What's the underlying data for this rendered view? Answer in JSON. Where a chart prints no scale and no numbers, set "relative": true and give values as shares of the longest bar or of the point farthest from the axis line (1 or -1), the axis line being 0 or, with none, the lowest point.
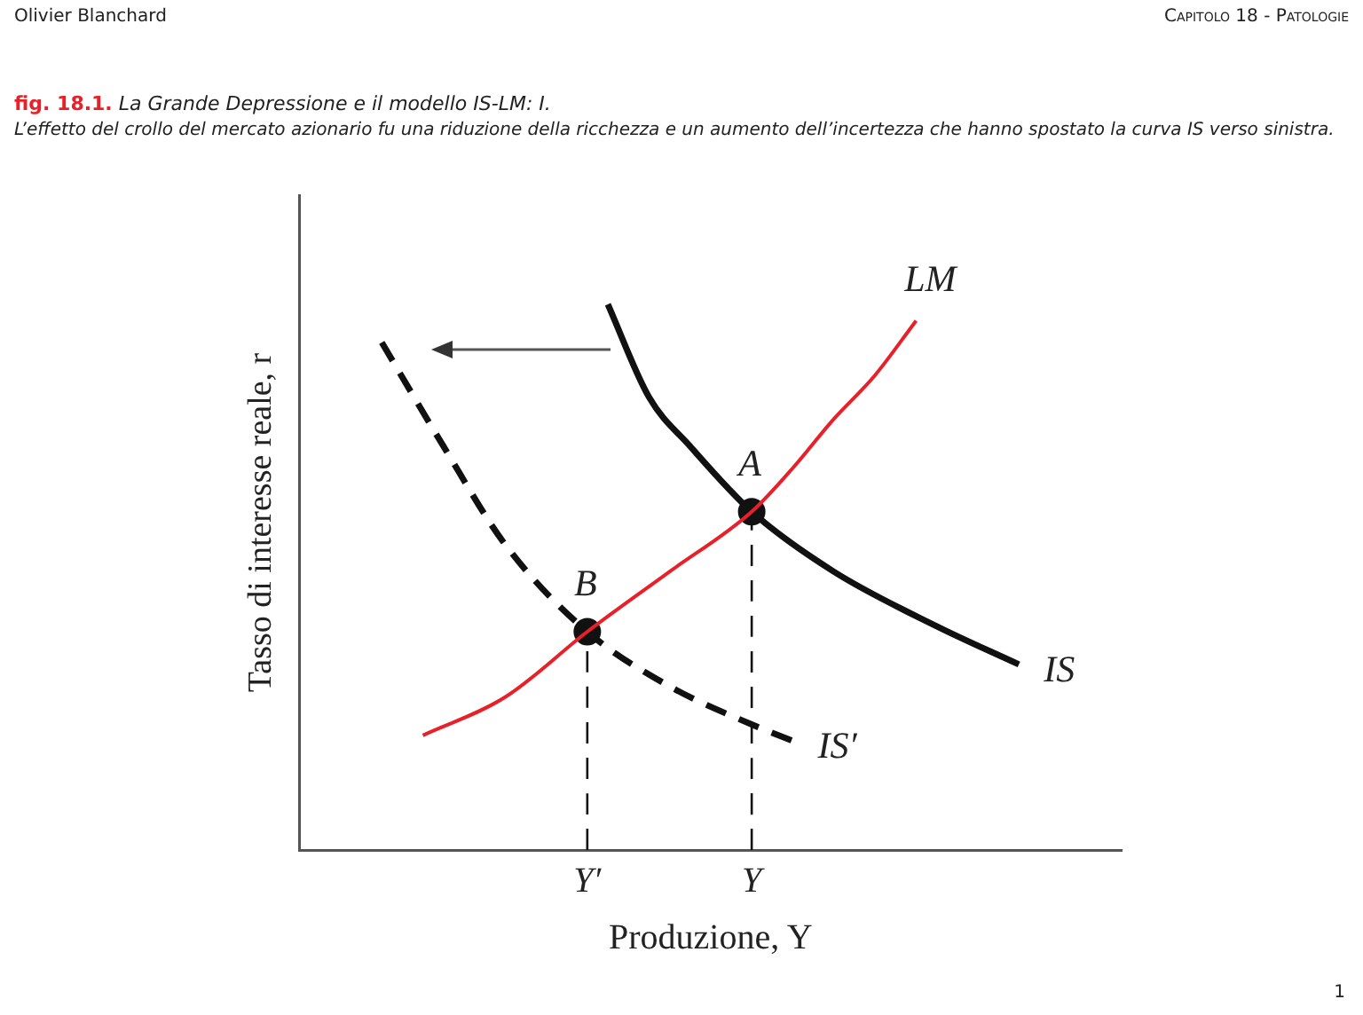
{
  "chart_data": {
    "type": "line",
    "relative": true,
    "title": "fig. 18.1. La Grande Depressione e il modello IS-LM: I.",
    "subtitle": "L’effetto del crollo del mercato azionario fu una riduzione della ricchezza e un aumento dell’incertezza che hanno spostato la curva IS verso sinistra.",
    "xlabel": "Produzione, Y",
    "ylabel": "Tasso di interesse reale, r",
    "categories": [
      null,
      null,
      null,
      null,
      null,
      null,
      null,
      null,
      null,
      null,
      null,
      null,
      null,
      null,
      "Y′",
      null,
      null,
      null,
      null,
      null,
      null,
      null,
      "Y",
      null,
      null,
      null,
      null,
      null,
      null,
      null,
      null,
      null,
      null,
      null,
      null,
      null,
      null,
      null,
      null,
      null,
      null
    ],
    "tick_labels": "x",
    "marker": "none",
    "series": [
      {
        "name": "LM",
        "color": "#e8202a",
        "line_style": "solid",
        "values": [
          null,
          null,
          null,
          null,
          null,
          null,
          0.21,
          null,
          null,
          null,
          0.28,
          null,
          null,
          null,
          0.4,
          null,
          null,
          null,
          0.51,
          null,
          null,
          null,
          0.62,
          null,
          0.7,
          null,
          0.79,
          null,
          0.87,
          null,
          0.97,
          null,
          null,
          null,
          null,
          null,
          null,
          null,
          null,
          null,
          null
        ]
      },
      {
        "name": "IS",
        "color": "#111111",
        "line_style": "solid",
        "values": [
          null,
          null,
          null,
          null,
          null,
          null,
          null,
          null,
          null,
          null,
          null,
          null,
          null,
          null,
          null,
          1.0,
          null,
          0.83,
          null,
          0.74,
          null,
          null,
          0.62,
          null,
          null,
          null,
          0.51,
          null,
          null,
          null,
          null,
          0.41,
          null,
          null,
          null,
          0.34,
          null,
          null,
          null,
          null,
          null
        ]
      },
      {
        "name": "IS′",
        "color": "#111111",
        "line_style": "dashed",
        "values": [
          null,
          null,
          null,
          null,
          0.93,
          null,
          null,
          0.74,
          null,
          null,
          0.56,
          null,
          null,
          null,
          0.4,
          null,
          null,
          null,
          0.3,
          null,
          null,
          null,
          0.23,
          null,
          0.2,
          null,
          null,
          null,
          null,
          null,
          null,
          null,
          null,
          null,
          null,
          null,
          null,
          null,
          null,
          null,
          null
        ]
      },
      {
        "color": "#111111",
        "line_style": "dashed",
        "x": [
          "Y′",
          "Y′"
        ],
        "values": [
          0,
          0.4
        ]
      },
      {
        "color": "#111111",
        "line_style": "dashed",
        "x": [
          "Y",
          "Y"
        ],
        "values": [
          0,
          0.62
        ]
      },
      {
        "type": "scatter",
        "marker": "circle",
        "color": "#111111",
        "x": [
          "Y",
          "Y′"
        ],
        "values": [
          0.62,
          0.4
        ]
      }
    ],
    "annotations": [
      "Olivier Blanchard",
      "Capitolo 18 - Patologie",
      "1",
      {
        "text": "A",
        "x": "Y",
        "y": 0.62
      },
      {
        "text": "B",
        "x": "Y′",
        "y": 0.4
      }
    ]
  }
}
